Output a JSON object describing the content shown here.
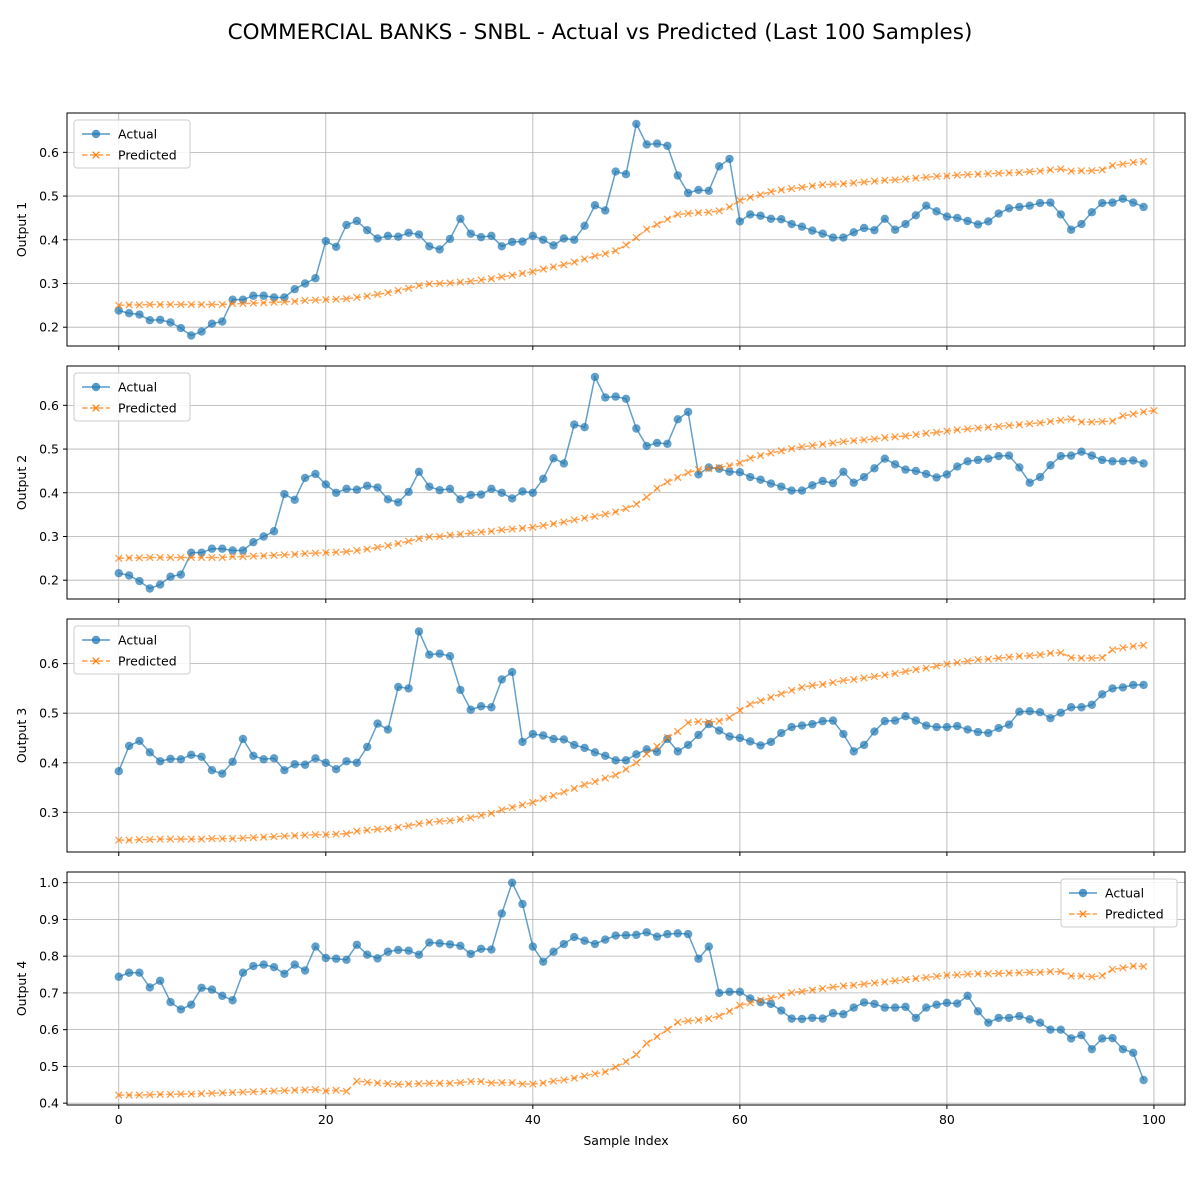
{
  "figure": {
    "title": "COMMERCIAL BANKS - SNBL - Actual vs Predicted (Last 100 Samples)",
    "xlabel": "Sample Index"
  },
  "colors": {
    "actual": "#1f77b4",
    "predicted": "#ff7f0e",
    "grid": "#b0b0b0"
  },
  "chart_data": [
    {
      "type": "line",
      "ylabel": "Output 1",
      "legend_loc": "upper left",
      "xlim": [
        -5,
        103
      ],
      "ylim": [
        0.157,
        0.69
      ],
      "xticks": [
        0,
        20,
        40,
        60,
        80,
        100
      ],
      "yticks": [
        0.2,
        0.3,
        0.4,
        0.5,
        0.6
      ],
      "grid": true,
      "series": [
        {
          "name": "Actual",
          "marker": "o",
          "values": [
            0.238,
            0.232,
            0.229,
            0.216,
            0.217,
            0.211,
            0.198,
            0.181,
            0.19,
            0.208,
            0.213,
            0.263,
            0.263,
            0.272,
            0.272,
            0.268,
            0.268,
            0.287,
            0.3,
            0.312,
            0.397,
            0.384,
            0.434,
            0.443,
            0.422,
            0.403,
            0.409,
            0.407,
            0.416,
            0.412,
            0.385,
            0.378,
            0.402,
            0.448,
            0.414,
            0.406,
            0.409,
            0.385,
            0.395,
            0.396,
            0.409,
            0.4,
            0.387,
            0.403,
            0.4,
            0.432,
            0.479,
            0.467,
            0.556,
            0.55,
            0.665,
            0.618,
            0.62,
            0.615,
            0.547,
            0.507,
            0.514,
            0.512,
            0.568,
            0.585,
            0.442,
            0.458,
            0.455,
            0.448,
            0.447,
            0.436,
            0.43,
            0.421,
            0.414,
            0.405,
            0.405,
            0.417,
            0.427,
            0.422,
            0.448,
            0.423,
            0.436,
            0.456,
            0.478,
            0.465,
            0.453,
            0.45,
            0.443,
            0.435,
            0.442,
            0.46,
            0.472,
            0.475,
            0.478,
            0.484,
            0.485,
            0.458,
            0.423,
            0.436,
            0.463,
            0.484,
            0.485,
            0.494,
            0.485,
            0.475
          ]
        },
        {
          "name": "Predicted",
          "marker": "x",
          "values": [
            0.25,
            0.251,
            0.251,
            0.252,
            0.252,
            0.252,
            0.252,
            0.252,
            0.252,
            0.252,
            0.252,
            0.254,
            0.254,
            0.255,
            0.256,
            0.257,
            0.258,
            0.259,
            0.261,
            0.262,
            0.263,
            0.264,
            0.265,
            0.268,
            0.271,
            0.275,
            0.279,
            0.284,
            0.289,
            0.295,
            0.299,
            0.3,
            0.301,
            0.303,
            0.305,
            0.308,
            0.311,
            0.315,
            0.319,
            0.323,
            0.327,
            0.333,
            0.338,
            0.343,
            0.349,
            0.356,
            0.363,
            0.368,
            0.375,
            0.388,
            0.405,
            0.424,
            0.435,
            0.447,
            0.458,
            0.46,
            0.462,
            0.463,
            0.466,
            0.475,
            0.49,
            0.497,
            0.503,
            0.51,
            0.514,
            0.517,
            0.52,
            0.523,
            0.526,
            0.527,
            0.528,
            0.53,
            0.532,
            0.534,
            0.536,
            0.537,
            0.539,
            0.541,
            0.543,
            0.545,
            0.546,
            0.548,
            0.549,
            0.55,
            0.551,
            0.552,
            0.553,
            0.554,
            0.556,
            0.557,
            0.56,
            0.562,
            0.557,
            0.558,
            0.558,
            0.56,
            0.57,
            0.573,
            0.577,
            0.579
          ]
        }
      ]
    },
    {
      "type": "line",
      "ylabel": "Output 2",
      "legend_loc": "upper left",
      "xlim": [
        -5,
        103
      ],
      "ylim": [
        0.157,
        0.69
      ],
      "xticks": [
        0,
        20,
        40,
        60,
        80,
        100
      ],
      "yticks": [
        0.2,
        0.3,
        0.4,
        0.5,
        0.6
      ],
      "grid": true,
      "series": [
        {
          "name": "Actual",
          "marker": "o",
          "values": [
            0.216,
            0.211,
            0.198,
            0.181,
            0.19,
            0.208,
            0.213,
            0.263,
            0.263,
            0.272,
            0.272,
            0.268,
            0.268,
            0.287,
            0.3,
            0.312,
            0.397,
            0.384,
            0.434,
            0.443,
            0.419,
            0.4,
            0.409,
            0.407,
            0.416,
            0.412,
            0.385,
            0.378,
            0.402,
            0.448,
            0.414,
            0.406,
            0.409,
            0.385,
            0.395,
            0.396,
            0.409,
            0.4,
            0.387,
            0.403,
            0.4,
            0.432,
            0.479,
            0.467,
            0.556,
            0.55,
            0.665,
            0.618,
            0.62,
            0.615,
            0.547,
            0.507,
            0.514,
            0.512,
            0.568,
            0.585,
            0.442,
            0.458,
            0.455,
            0.448,
            0.447,
            0.436,
            0.43,
            0.421,
            0.414,
            0.405,
            0.405,
            0.417,
            0.427,
            0.422,
            0.448,
            0.423,
            0.436,
            0.456,
            0.478,
            0.465,
            0.453,
            0.45,
            0.443,
            0.435,
            0.442,
            0.46,
            0.472,
            0.475,
            0.478,
            0.484,
            0.485,
            0.458,
            0.423,
            0.436,
            0.463,
            0.484,
            0.485,
            0.494,
            0.485,
            0.475,
            0.472,
            0.472,
            0.474,
            0.467
          ]
        },
        {
          "name": "Predicted",
          "marker": "x",
          "values": [
            0.25,
            0.251,
            0.251,
            0.252,
            0.252,
            0.252,
            0.252,
            0.252,
            0.252,
            0.252,
            0.252,
            0.254,
            0.254,
            0.255,
            0.256,
            0.257,
            0.258,
            0.259,
            0.261,
            0.262,
            0.263,
            0.264,
            0.265,
            0.268,
            0.271,
            0.275,
            0.279,
            0.284,
            0.289,
            0.295,
            0.299,
            0.3,
            0.303,
            0.305,
            0.308,
            0.31,
            0.312,
            0.315,
            0.317,
            0.319,
            0.321,
            0.325,
            0.329,
            0.333,
            0.338,
            0.342,
            0.346,
            0.351,
            0.356,
            0.364,
            0.374,
            0.39,
            0.41,
            0.425,
            0.435,
            0.446,
            0.453,
            0.455,
            0.458,
            0.462,
            0.468,
            0.479,
            0.485,
            0.491,
            0.496,
            0.501,
            0.505,
            0.508,
            0.511,
            0.514,
            0.517,
            0.519,
            0.521,
            0.523,
            0.526,
            0.528,
            0.53,
            0.533,
            0.536,
            0.538,
            0.541,
            0.544,
            0.546,
            0.548,
            0.55,
            0.552,
            0.554,
            0.556,
            0.558,
            0.56,
            0.563,
            0.566,
            0.569,
            0.562,
            0.562,
            0.563,
            0.564,
            0.576,
            0.58,
            0.585,
            0.588
          ]
        }
      ]
    },
    {
      "type": "line",
      "ylabel": "Output 3",
      "legend_loc": "upper left",
      "xlim": [
        -5,
        103
      ],
      "ylim": [
        0.22,
        0.69
      ],
      "xticks": [
        0,
        20,
        40,
        60,
        80,
        100
      ],
      "yticks": [
        0.3,
        0.4,
        0.5,
        0.6
      ],
      "grid": true,
      "series": [
        {
          "name": "Actual",
          "marker": "o",
          "values": [
            0.383,
            0.434,
            0.444,
            0.421,
            0.403,
            0.408,
            0.407,
            0.416,
            0.412,
            0.385,
            0.378,
            0.402,
            0.448,
            0.414,
            0.407,
            0.409,
            0.385,
            0.397,
            0.396,
            0.409,
            0.4,
            0.387,
            0.403,
            0.4,
            0.432,
            0.479,
            0.467,
            0.553,
            0.55,
            0.665,
            0.618,
            0.62,
            0.615,
            0.547,
            0.507,
            0.514,
            0.512,
            0.568,
            0.583,
            0.442,
            0.458,
            0.455,
            0.448,
            0.447,
            0.436,
            0.43,
            0.421,
            0.414,
            0.405,
            0.405,
            0.417,
            0.427,
            0.422,
            0.448,
            0.423,
            0.436,
            0.456,
            0.478,
            0.465,
            0.453,
            0.45,
            0.443,
            0.435,
            0.442,
            0.46,
            0.472,
            0.475,
            0.478,
            0.484,
            0.485,
            0.458,
            0.423,
            0.436,
            0.463,
            0.484,
            0.485,
            0.494,
            0.485,
            0.475,
            0.472,
            0.472,
            0.474,
            0.467,
            0.462,
            0.46,
            0.47,
            0.477,
            0.503,
            0.504,
            0.502,
            0.49,
            0.501,
            0.512,
            0.512,
            0.517,
            0.538,
            0.55,
            0.552,
            0.557,
            0.557
          ]
        },
        {
          "name": "Predicted",
          "marker": "x",
          "values": [
            0.244,
            0.244,
            0.245,
            0.245,
            0.246,
            0.246,
            0.246,
            0.246,
            0.246,
            0.247,
            0.247,
            0.247,
            0.248,
            0.249,
            0.25,
            0.251,
            0.252,
            0.253,
            0.254,
            0.255,
            0.255,
            0.256,
            0.257,
            0.262,
            0.264,
            0.266,
            0.267,
            0.27,
            0.273,
            0.277,
            0.28,
            0.282,
            0.283,
            0.286,
            0.289,
            0.294,
            0.298,
            0.305,
            0.31,
            0.315,
            0.32,
            0.328,
            0.334,
            0.341,
            0.348,
            0.356,
            0.362,
            0.369,
            0.375,
            0.387,
            0.4,
            0.418,
            0.433,
            0.451,
            0.463,
            0.481,
            0.483,
            0.482,
            0.484,
            0.491,
            0.506,
            0.518,
            0.525,
            0.532,
            0.539,
            0.546,
            0.552,
            0.556,
            0.558,
            0.562,
            0.566,
            0.568,
            0.571,
            0.574,
            0.577,
            0.58,
            0.584,
            0.588,
            0.591,
            0.595,
            0.599,
            0.602,
            0.605,
            0.608,
            0.609,
            0.611,
            0.613,
            0.615,
            0.616,
            0.618,
            0.621,
            0.622,
            0.612,
            0.611,
            0.611,
            0.612,
            0.628,
            0.632,
            0.635,
            0.637
          ]
        }
      ]
    },
    {
      "type": "line",
      "ylabel": "Output 4",
      "legend_loc": "upper right",
      "xlim": [
        -5,
        103
      ],
      "ylim": [
        0.395,
        1.029
      ],
      "xticks": [
        0,
        20,
        40,
        60,
        80,
        100
      ],
      "yticks": [
        0.4,
        0.5,
        0.6,
        0.7,
        0.8,
        0.9,
        1.0
      ],
      "grid": true,
      "series": [
        {
          "name": "Actual",
          "marker": "o",
          "values": [
            0.744,
            0.755,
            0.755,
            0.715,
            0.733,
            0.675,
            0.655,
            0.668,
            0.714,
            0.709,
            0.692,
            0.68,
            0.755,
            0.773,
            0.777,
            0.77,
            0.752,
            0.777,
            0.761,
            0.826,
            0.795,
            0.793,
            0.79,
            0.831,
            0.804,
            0.794,
            0.812,
            0.817,
            0.815,
            0.804,
            0.837,
            0.835,
            0.832,
            0.828,
            0.806,
            0.82,
            0.818,
            0.916,
            1.0,
            0.942,
            0.826,
            0.785,
            0.812,
            0.833,
            0.852,
            0.842,
            0.833,
            0.845,
            0.856,
            0.857,
            0.858,
            0.865,
            0.853,
            0.86,
            0.862,
            0.86,
            0.793,
            0.826,
            0.7,
            0.703,
            0.703,
            0.685,
            0.675,
            0.67,
            0.652,
            0.63,
            0.629,
            0.632,
            0.63,
            0.645,
            0.642,
            0.66,
            0.674,
            0.67,
            0.66,
            0.66,
            0.662,
            0.632,
            0.66,
            0.668,
            0.673,
            0.671,
            0.692,
            0.65,
            0.619,
            0.632,
            0.632,
            0.637,
            0.628,
            0.619,
            0.6,
            0.6,
            0.576,
            0.585,
            0.547,
            0.576,
            0.577,
            0.547,
            0.537,
            0.463
          ]
        },
        {
          "name": "Predicted",
          "marker": "x",
          "values": [
            0.422,
            0.422,
            0.422,
            0.423,
            0.424,
            0.424,
            0.425,
            0.425,
            0.426,
            0.427,
            0.428,
            0.429,
            0.43,
            0.431,
            0.432,
            0.433,
            0.434,
            0.435,
            0.436,
            0.437,
            0.433,
            0.435,
            0.432,
            0.46,
            0.457,
            0.455,
            0.453,
            0.451,
            0.452,
            0.453,
            0.454,
            0.454,
            0.454,
            0.456,
            0.459,
            0.459,
            0.455,
            0.456,
            0.456,
            0.452,
            0.452,
            0.455,
            0.46,
            0.463,
            0.468,
            0.474,
            0.48,
            0.485,
            0.498,
            0.513,
            0.532,
            0.563,
            0.581,
            0.6,
            0.62,
            0.624,
            0.626,
            0.63,
            0.637,
            0.65,
            0.666,
            0.673,
            0.68,
            0.686,
            0.692,
            0.701,
            0.704,
            0.708,
            0.712,
            0.716,
            0.719,
            0.721,
            0.724,
            0.727,
            0.73,
            0.733,
            0.736,
            0.739,
            0.742,
            0.745,
            0.748,
            0.749,
            0.751,
            0.752,
            0.752,
            0.753,
            0.754,
            0.755,
            0.756,
            0.756,
            0.758,
            0.758,
            0.746,
            0.746,
            0.744,
            0.747,
            0.764,
            0.768,
            0.773,
            0.772
          ]
        }
      ]
    }
  ]
}
